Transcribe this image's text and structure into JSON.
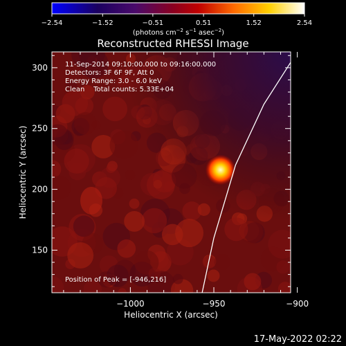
{
  "chart_data": {
    "type": "heatmap",
    "title": "Reconstructed RHESSI Image",
    "xlabel": "Heliocentric X (arcsec)",
    "ylabel": "Heliocentric Y (arcsec)",
    "xlim": [
      -1047,
      -904
    ],
    "ylim": [
      115,
      313
    ],
    "x_ticks": [
      -1000,
      -950,
      -900
    ],
    "x_tick_labels": [
      "−1000",
      "−950",
      "−900"
    ],
    "y_ticks": [
      150,
      200,
      250,
      300
    ],
    "y_tick_labels": [
      "150",
      "200",
      "250",
      "300"
    ],
    "colorbar": {
      "min": -2.54,
      "max": 2.54,
      "ticks": [
        -2.54,
        -1.52,
        -0.51,
        0.51,
        1.52,
        2.54
      ],
      "tick_labels": [
        "−2.54",
        "−1.52",
        "−0.51",
        "0.51",
        "1.52",
        "2.54"
      ],
      "unit_parts": [
        "(photons cm",
        "−2",
        " s",
        "−1",
        " asec",
        "−2",
        ")"
      ],
      "colormap": "rhessi-flame"
    },
    "info_lines": [
      "11-Sep-2014 09:10:00.000 to 09:16:00.000",
      "Detectors: 3F 6F 9F, Att 0",
      "Energy Range: 3.0 - 6.0 keV",
      "Clean    Total counts: 5.33E+04"
    ],
    "peak_label": "Position of Peak = [-946,216]",
    "peak": {
      "x": -946,
      "y": 216,
      "value": 2.54
    },
    "limb": {
      "color": "#ffffff",
      "points": [
        [
          -900,
          313
        ],
        [
          -920,
          270
        ],
        [
          -937,
          220
        ],
        [
          -950,
          160
        ],
        [
          -957,
          115
        ]
      ]
    },
    "colors": {
      "background": "#000000",
      "text": "#ffffff",
      "limb": "#ffffff"
    }
  },
  "footer": {
    "timestamp": "17-May-2022 02:22"
  }
}
